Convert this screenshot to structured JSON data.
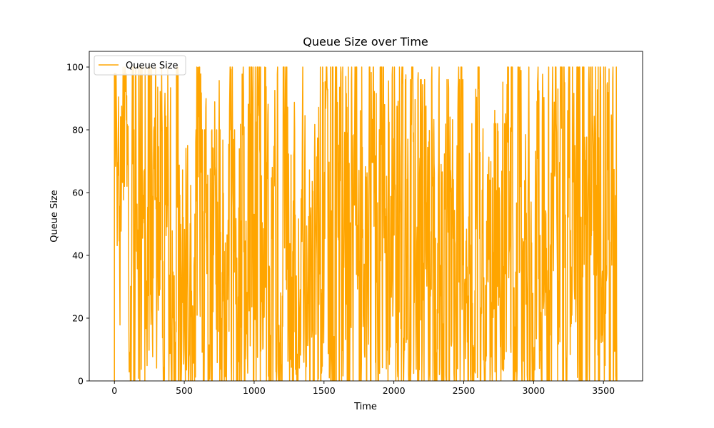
{
  "chart_data": {
    "type": "line",
    "title": "Queue Size over Time",
    "xlabel": "Time",
    "ylabel": "Queue Size",
    "xlim": [
      -180,
      3780
    ],
    "ylim": [
      0,
      105
    ],
    "xticks": [
      0,
      500,
      1000,
      1500,
      2000,
      2500,
      3000,
      3500
    ],
    "yticks": [
      0,
      20,
      40,
      60,
      80,
      100
    ],
    "grid": false,
    "legend": {
      "placement": "upper-left"
    },
    "series": [
      {
        "name": "Queue Size",
        "color": "#ffa500",
        "x_range": [
          0,
          3599
        ],
        "generator": {
          "min": 0,
          "max": 100,
          "segment_seed": 7,
          "segments": [
            {
              "x_end": 100,
              "low": 62,
              "high": 98
            },
            {
              "x_end": 450,
              "low": 0,
              "high": 100
            },
            {
              "x_end": 900,
              "low": 0,
              "high": 80
            },
            {
              "x_end": 1250,
              "low": 0,
              "high": 100
            },
            {
              "x_end": 1450,
              "low": 0,
              "high": 72
            },
            {
              "x_end": 2050,
              "low": 0,
              "high": 100
            },
            {
              "x_end": 2500,
              "low": 0,
              "high": 96
            },
            {
              "x_end": 2800,
              "low": 0,
              "high": 82
            },
            {
              "x_end": 3600,
              "low": 0,
              "high": 100
            }
          ]
        }
      }
    ]
  }
}
